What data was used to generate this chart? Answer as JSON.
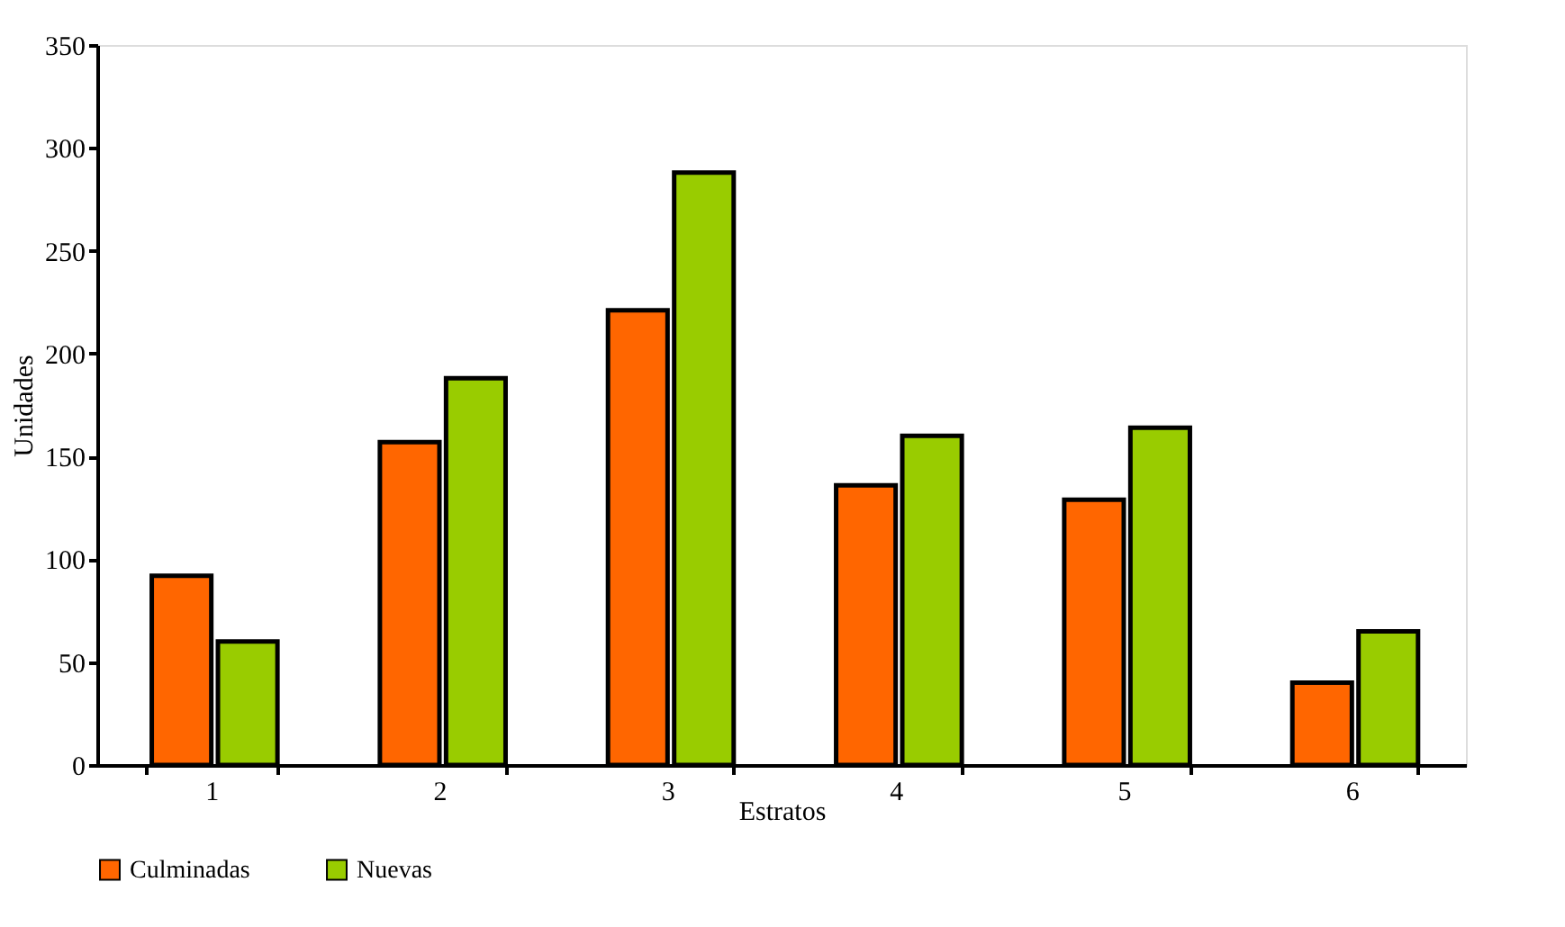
{
  "chart_data": {
    "type": "bar",
    "xlabel": "Estratos",
    "ylabel": "Unidades",
    "categories": [
      "1",
      "2",
      "3",
      "4",
      "5",
      "6"
    ],
    "series": [
      {
        "name": "Culminadas",
        "color": "#ff6600",
        "values": [
          92,
          157,
          221,
          136,
          129,
          40
        ]
      },
      {
        "name": "Nuevas",
        "color": "#99cc00",
        "values": [
          60,
          188,
          288,
          160,
          164,
          65
        ]
      }
    ],
    "ylim": [
      0,
      350
    ],
    "yticks": [
      0,
      50,
      100,
      150,
      200,
      250,
      300,
      350
    ],
    "grid": false,
    "legend": "bottom"
  }
}
